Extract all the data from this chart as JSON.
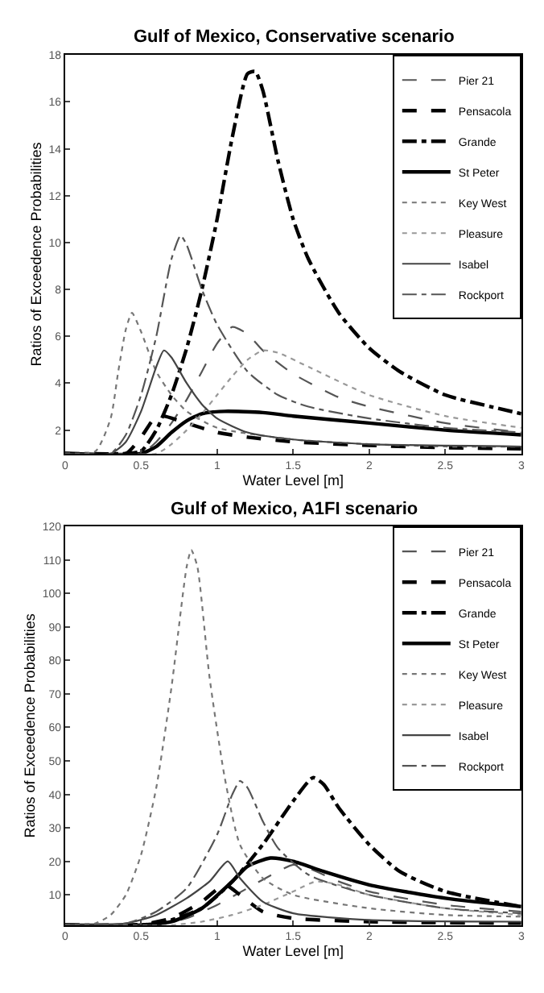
{
  "chart_data": [
    {
      "type": "line",
      "title": "Gulf of Mexico, Conservative scenario",
      "xlabel": "Water Level [m]",
      "ylabel": "Ratios of Exceedence Probabilities",
      "xlim": [
        0,
        3
      ],
      "xticks": [
        0,
        0.5,
        1,
        1.5,
        2,
        2.5,
        3
      ],
      "ylim": [
        1,
        18
      ],
      "yticks": [
        2,
        4,
        6,
        8,
        10,
        12,
        14,
        16,
        18
      ],
      "legend": "top right",
      "marker": "none",
      "series": [
        {
          "name": "Pier 21",
          "color": "#555555",
          "line_style": "dashed",
          "x": [
            0,
            0.5,
            0.6,
            0.7,
            0.8,
            0.9,
            1.0,
            1.1,
            1.2,
            1.3,
            1.5,
            1.8,
            2.0,
            2.5,
            3
          ],
          "values": [
            1,
            1,
            1.5,
            2.3,
            3.3,
            4.5,
            5.7,
            6.4,
            6.1,
            5.4,
            4.4,
            3.4,
            3,
            2.3,
            1.9
          ]
        },
        {
          "name": "Pensacola",
          "color": "#000000",
          "line_style": "dashed",
          "x": [
            0,
            0.4,
            0.5,
            0.6,
            0.65,
            0.8,
            1.0,
            1.2,
            1.5,
            2,
            2.5,
            3
          ],
          "values": [
            1,
            1,
            1.7,
            2.6,
            2.6,
            2.3,
            1.9,
            1.7,
            1.5,
            1.35,
            1.25,
            1.2
          ]
        },
        {
          "name": "Grande",
          "color": "#000000",
          "line_style": "dashdot",
          "x": [
            0,
            0.4,
            0.5,
            0.6,
            0.7,
            0.8,
            0.9,
            1.0,
            1.1,
            1.2,
            1.25,
            1.3,
            1.4,
            1.5,
            1.6,
            1.8,
            2.0,
            2.2,
            2.5,
            2.8,
            3
          ],
          "values": [
            1,
            1,
            1.1,
            2,
            3.5,
            5.5,
            8,
            11,
            14.5,
            17.2,
            17.3,
            16.5,
            13.5,
            11,
            9.3,
            7,
            5.5,
            4.5,
            3.5,
            3,
            2.7
          ]
        },
        {
          "name": "St Peter",
          "color": "#000000",
          "line_style": "solid",
          "x": [
            0,
            0.5,
            0.6,
            0.7,
            0.8,
            0.9,
            1.05,
            1.3,
            1.5,
            2,
            2.5,
            3
          ],
          "values": [
            1,
            1,
            1.3,
            1.9,
            2.4,
            2.7,
            2.8,
            2.75,
            2.6,
            2.3,
            2,
            1.8
          ]
        },
        {
          "name": "Key West",
          "color": "#777777",
          "line_style": "dotted",
          "x": [
            0,
            0.2,
            0.3,
            0.35,
            0.4,
            0.44,
            0.5,
            0.6,
            0.7,
            0.8,
            1.0,
            1.5,
            2,
            2.5,
            3
          ],
          "values": [
            1,
            1.1,
            2.5,
            4.5,
            6.3,
            7,
            6.2,
            4.5,
            3.5,
            2.8,
            2.1,
            1.6,
            1.4,
            1.3,
            1.3
          ]
        },
        {
          "name": "Pleasure",
          "color": "#999999",
          "line_style": "dotted",
          "x": [
            0,
            0.6,
            0.7,
            0.8,
            0.9,
            1.0,
            1.1,
            1.2,
            1.3,
            1.4,
            1.6,
            2.0,
            2.5,
            3
          ],
          "values": [
            1,
            1,
            1.4,
            2,
            2.7,
            3.5,
            4.3,
            5,
            5.4,
            5.3,
            4.7,
            3.5,
            2.6,
            2.1
          ]
        },
        {
          "name": "Isabel",
          "color": "#444444",
          "line_style": "solid",
          "x": [
            0,
            0.3,
            0.4,
            0.5,
            0.6,
            0.65,
            0.7,
            0.8,
            0.9,
            1.0,
            1.2,
            1.5,
            2,
            3
          ],
          "values": [
            1,
            1,
            1.5,
            2.8,
            4.7,
            5.4,
            5.1,
            4,
            3.1,
            2.5,
            1.9,
            1.6,
            1.4,
            1.3
          ]
        },
        {
          "name": "Rockport",
          "color": "#555555",
          "line_style": "dashdot",
          "x": [
            0,
            0.3,
            0.4,
            0.5,
            0.6,
            0.7,
            0.76,
            0.8,
            0.9,
            1.0,
            1.2,
            1.4,
            1.6,
            2.0,
            2.5,
            3
          ],
          "values": [
            1,
            1,
            1.8,
            3.5,
            6,
            9.3,
            10.3,
            9.9,
            8,
            6.5,
            4.5,
            3.5,
            3,
            2.5,
            2.1,
            1.9
          ]
        }
      ]
    },
    {
      "type": "line",
      "title": "Gulf of Mexico, A1FI scenario",
      "xlabel": "Water Level [m]",
      "ylabel": "Ratios of Exceedence Probabilities",
      "xlim": [
        0,
        3
      ],
      "xticks": [
        0,
        0.5,
        1,
        1.5,
        2,
        2.5,
        3
      ],
      "ylim": [
        1,
        120
      ],
      "yticks": [
        10,
        20,
        30,
        40,
        50,
        60,
        70,
        80,
        90,
        100,
        110,
        120
      ],
      "legend": "top right",
      "marker": "none",
      "series": [
        {
          "name": "Pier 21",
          "color": "#555555",
          "line_style": "dashed",
          "x": [
            0,
            0.6,
            0.8,
            1.0,
            1.2,
            1.4,
            1.5,
            1.6,
            1.8,
            2,
            2.5,
            3
          ],
          "values": [
            1,
            1,
            3,
            7,
            12,
            17,
            19,
            18,
            14,
            11,
            7,
            5
          ]
        },
        {
          "name": "Pensacola",
          "color": "#000000",
          "line_style": "dashed",
          "x": [
            0,
            0.5,
            0.7,
            0.9,
            1.05,
            1.15,
            1.3,
            1.5,
            2,
            3
          ],
          "values": [
            1,
            1.2,
            3,
            8,
            13,
            10,
            5,
            3,
            2,
            1.5
          ]
        },
        {
          "name": "Grande",
          "color": "#000000",
          "line_style": "dashdot",
          "x": [
            0,
            0.5,
            0.7,
            0.9,
            1.1,
            1.3,
            1.5,
            1.63,
            1.7,
            1.8,
            2.0,
            2.2,
            2.5,
            3
          ],
          "values": [
            1,
            1,
            2.5,
            6,
            14,
            25,
            38,
            45,
            43,
            36,
            25,
            17,
            11,
            6.5
          ]
        },
        {
          "name": "St Peter",
          "color": "#000000",
          "line_style": "solid",
          "x": [
            0,
            0.5,
            0.7,
            0.9,
            1.1,
            1.2,
            1.35,
            1.5,
            1.7,
            2.0,
            2.5,
            3
          ],
          "values": [
            1,
            1,
            2,
            6,
            14,
            18.5,
            21,
            20,
            17,
            13,
            9,
            6.5
          ]
        },
        {
          "name": "Key West",
          "color": "#777777",
          "line_style": "dotted",
          "x": [
            0,
            0.2,
            0.3,
            0.4,
            0.5,
            0.6,
            0.7,
            0.8,
            0.83,
            0.87,
            0.95,
            1.05,
            1.15,
            1.3,
            1.5,
            2,
            2.5,
            3
          ],
          "values": [
            1,
            1.5,
            4,
            10,
            22,
            42,
            72,
            108,
            113,
            108,
            75,
            45,
            25,
            15,
            10,
            6,
            4,
            3.5
          ]
        },
        {
          "name": "Pleasure",
          "color": "#999999",
          "line_style": "dotted",
          "x": [
            0,
            0.7,
            0.9,
            1.1,
            1.3,
            1.5,
            1.65,
            1.8,
            2,
            2.5,
            3
          ],
          "values": [
            1,
            1,
            2,
            4,
            7,
            11,
            14,
            13,
            10,
            6,
            4
          ]
        },
        {
          "name": "Isabel",
          "color": "#444444",
          "line_style": "solid",
          "x": [
            0,
            0.4,
            0.6,
            0.8,
            0.95,
            1.07,
            1.15,
            1.3,
            1.5,
            2,
            3
          ],
          "values": [
            1,
            1.5,
            4,
            9,
            14,
            20,
            15,
            8,
            4.5,
            2.5,
            2
          ]
        },
        {
          "name": "Rockport",
          "color": "#555555",
          "line_style": "dashdot",
          "x": [
            0,
            0.4,
            0.6,
            0.8,
            1.0,
            1.1,
            1.15,
            1.2,
            1.3,
            1.4,
            1.6,
            2,
            2.5,
            3
          ],
          "values": [
            1,
            1.5,
            5,
            12,
            28,
            40,
            44,
            42,
            32,
            24,
            16,
            10,
            6,
            4.5
          ]
        }
      ]
    }
  ]
}
